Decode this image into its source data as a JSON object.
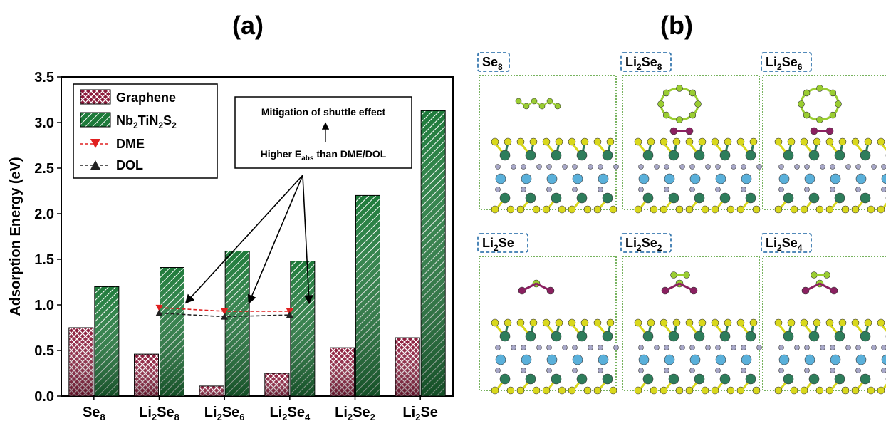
{
  "panel_a_label": "(a)",
  "panel_b_label": "(b)",
  "chart_data": {
    "type": "bar",
    "ylabel": "Adsorption Energy (eV)",
    "ylim": [
      0,
      3.5
    ],
    "yticks": [
      "0.0",
      "0.5",
      "1.0",
      "1.5",
      "2.0",
      "2.5",
      "3.0",
      "3.5"
    ],
    "categories": [
      {
        "base": "Se",
        "sub": "8",
        "tail": "",
        "tsub": ""
      },
      {
        "base": "Li",
        "sub": "2",
        "tail": "Se",
        "tsub": "8"
      },
      {
        "base": "Li",
        "sub": "2",
        "tail": "Se",
        "tsub": "6"
      },
      {
        "base": "Li",
        "sub": "2",
        "tail": "Se",
        "tsub": "4"
      },
      {
        "base": "Li",
        "sub": "2",
        "tail": "Se",
        "tsub": "2"
      },
      {
        "base": "Li",
        "sub": "2",
        "tail": "Se",
        "tsub": ""
      }
    ],
    "series": [
      {
        "name": "Graphene",
        "values": [
          0.75,
          0.46,
          0.11,
          0.25,
          0.53,
          0.64
        ],
        "color": "#8b1a3a",
        "pattern": "crosshatch"
      },
      {
        "name": "Nb2TiN2S2",
        "values": [
          1.2,
          1.41,
          1.59,
          1.48,
          2.2,
          3.13
        ],
        "color": "#1e7a3a",
        "pattern": "diagonal"
      }
    ],
    "lines": [
      {
        "name": "DME",
        "x": [
          1,
          2,
          3
        ],
        "values": [
          0.97,
          0.93,
          0.93
        ],
        "color": "#e02020",
        "marker": "triangle-down"
      },
      {
        "name": "DOL",
        "x": [
          1,
          2,
          3
        ],
        "values": [
          0.91,
          0.87,
          0.89
        ],
        "color": "#222222",
        "marker": "triangle-up"
      }
    ],
    "legend": {
      "graphene": "Graphene",
      "nb_base": "Nb",
      "nb_s1": "2",
      "nb_mid": "TiN",
      "nb_s2": "2",
      "nb_mid2": "S",
      "nb_s3": "2",
      "dme": "DME",
      "dol": "DOL"
    },
    "annotation": {
      "line1": "Mitigation of shuttle effect",
      "line2_a": "Higher E",
      "line2_sub": "abs",
      "line2_b": " than DME/DOL"
    }
  },
  "panel_b": {
    "labels": [
      {
        "base": "Se",
        "sub": "8",
        "tail": "",
        "tsub": ""
      },
      {
        "base": "Li",
        "sub": "2",
        "tail": "Se",
        "tsub": "8"
      },
      {
        "base": "Li",
        "sub": "2",
        "tail": "Se",
        "tsub": "6"
      },
      {
        "base": "Li",
        "sub": "2",
        "tail": "Se",
        "tsub": ""
      },
      {
        "base": "Li",
        "sub": "2",
        "tail": "Se",
        "tsub": "2"
      },
      {
        "base": "Li",
        "sub": "2",
        "tail": "Se",
        "tsub": "4"
      }
    ],
    "colors": {
      "green_atom": "#2e7d5b",
      "yellow_atom": "#d9d81c",
      "blue_atom": "#5ab0da",
      "grey_atom": "#a8a8c8",
      "purple_atom": "#8a2060",
      "lime_atom": "#9acd32",
      "frame": "#4a9a2a",
      "label_border": "#3a7ab0"
    }
  }
}
